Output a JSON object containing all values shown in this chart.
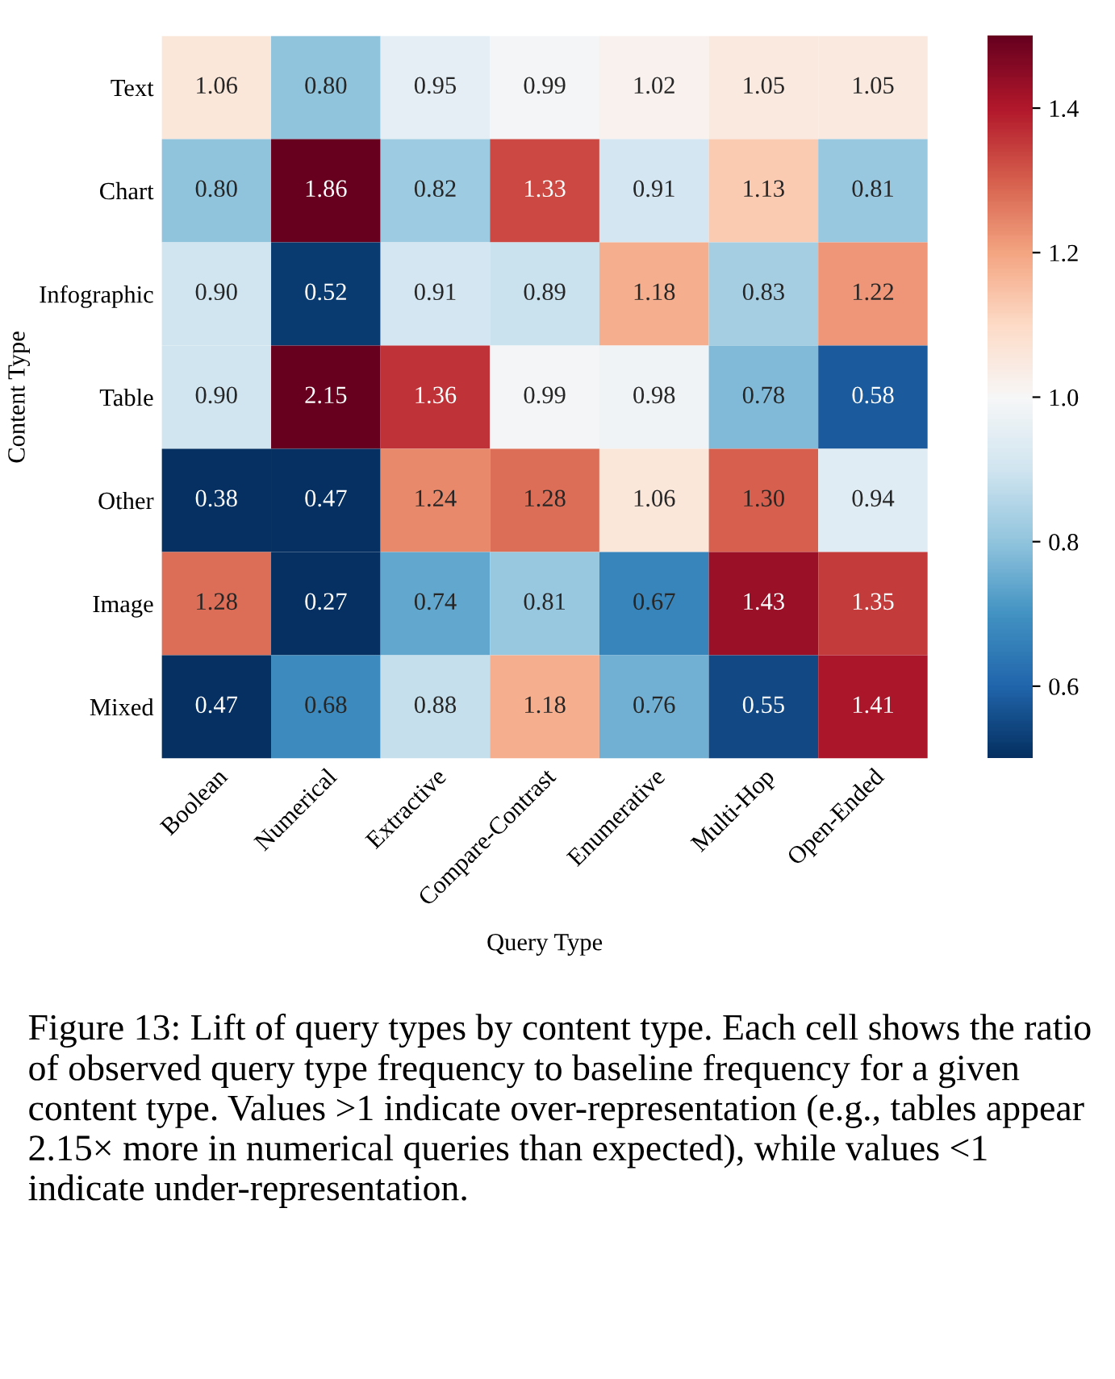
{
  "chart_data": {
    "type": "heatmap",
    "xlabel": "Query Type",
    "ylabel": "Content Type",
    "categories": [
      "Boolean",
      "Numerical",
      "Extractive",
      "Compare-Contrast",
      "Enumerative",
      "Multi-Hop",
      "Open-Ended"
    ],
    "y_categories": [
      "Text",
      "Chart",
      "Infographic",
      "Table",
      "Other",
      "Image",
      "Mixed"
    ],
    "cells": [
      [
        1.06,
        0.8,
        0.95,
        0.99,
        1.02,
        1.05,
        1.05
      ],
      [
        0.8,
        1.86,
        0.82,
        1.33,
        0.91,
        1.13,
        0.81
      ],
      [
        0.9,
        0.52,
        0.91,
        0.89,
        1.18,
        0.83,
        1.22
      ],
      [
        0.9,
        2.15,
        1.36,
        0.99,
        0.98,
        0.78,
        0.58
      ],
      [
        0.38,
        0.47,
        1.24,
        1.28,
        1.06,
        1.3,
        0.94
      ],
      [
        1.28,
        0.27,
        0.74,
        0.81,
        0.67,
        1.43,
        1.35
      ],
      [
        0.47,
        0.68,
        0.88,
        1.18,
        0.76,
        0.55,
        1.41
      ]
    ],
    "cell_labels": [
      [
        "1.06",
        "0.80",
        "0.95",
        "0.99",
        "1.02",
        "1.05",
        "1.05"
      ],
      [
        "0.80",
        "1.86",
        "0.82",
        "1.33",
        "0.91",
        "1.13",
        "0.81"
      ],
      [
        "0.90",
        "0.52",
        "0.91",
        "0.89",
        "1.18",
        "0.83",
        "1.22"
      ],
      [
        "0.90",
        "2.15",
        "1.36",
        "0.99",
        "0.98",
        "0.78",
        "0.58"
      ],
      [
        "0.38",
        "0.47",
        "1.24",
        "1.28",
        "1.06",
        "1.30",
        "0.94"
      ],
      [
        "1.28",
        "0.27",
        "0.74",
        "0.81",
        "0.67",
        "1.43",
        "1.35"
      ],
      [
        "0.47",
        "0.68",
        "0.88",
        "1.18",
        "0.76",
        "0.55",
        "1.41"
      ]
    ],
    "clim": [
      0.5,
      1.5
    ],
    "cticks": [
      0.6,
      0.8,
      {
        "value": 1.0,
        "label": "1.0"
      },
      1.2,
      1.4
    ],
    "data_labels": true,
    "annotations": [
      "Figure 13: Lift of query types by content type. Each cell shows the ratio of observed query type frequency to baseline frequency for a given content type. Values >1 indicate over-representation (e.g., tables appear 2.15× more in numerical queries than expected), while values <1 indicate under-representation."
    ]
  }
}
